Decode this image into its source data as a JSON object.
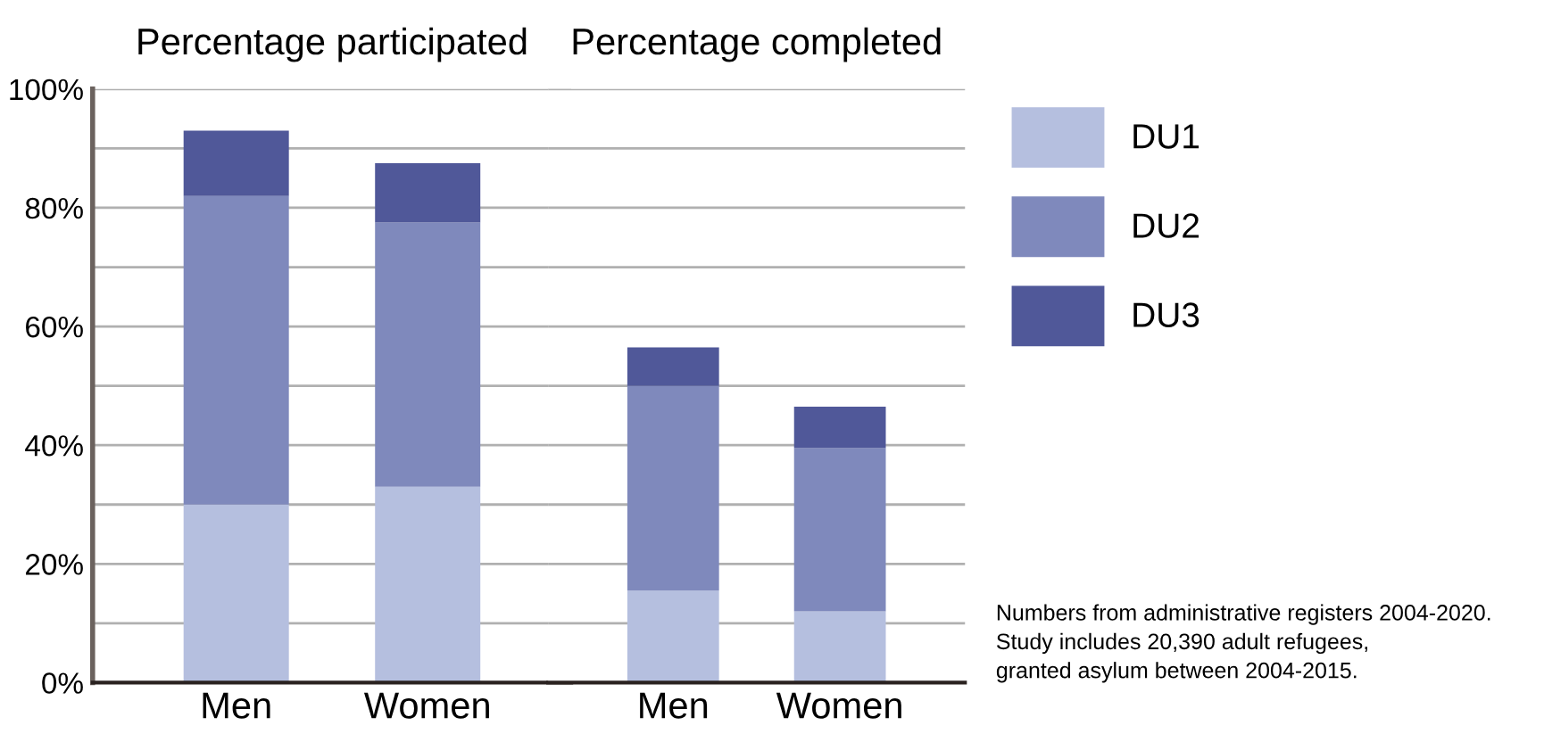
{
  "chart_data": [
    {
      "type": "bar",
      "title": "Percentage participated",
      "categories": [
        "Men",
        "Women"
      ],
      "stacked": true,
      "series": [
        {
          "color": "#b5bfdf",
          "values": [
            30,
            33
          ]
        },
        {
          "color": "#7f89bc",
          "values": [
            52,
            44.5
          ]
        },
        {
          "color": "#505899",
          "values": [
            11,
            10
          ]
        }
      ],
      "ylim": [
        0,
        100
      ],
      "yticks": [
        {
          "value": 0,
          "label": "0%"
        },
        {
          "value": 10,
          "label": null
        },
        {
          "value": 20,
          "label": "20%"
        },
        {
          "value": 30,
          "label": null
        },
        {
          "value": 40,
          "label": "40%"
        },
        {
          "value": 50,
          "label": null
        },
        {
          "value": 60,
          "label": "60%"
        },
        {
          "value": 70,
          "label": null
        },
        {
          "value": 80,
          "label": "80%"
        },
        {
          "value": 90,
          "label": null
        },
        {
          "value": 100,
          "label": "100%"
        }
      ],
      "grid": "y"
    },
    {
      "type": "bar",
      "title": "Percentage completed",
      "categories": [
        "Men",
        "Women"
      ],
      "stacked": true,
      "series": [
        {
          "name": "DU1",
          "color": "#b5bfdf",
          "values": [
            15.5,
            12
          ]
        },
        {
          "name": "DU2",
          "color": "#7f89bc",
          "values": [
            34.5,
            27.5
          ]
        },
        {
          "name": "DU3",
          "color": "#505899",
          "values": [
            6.5,
            7
          ]
        }
      ],
      "ylim": [
        0,
        100
      ],
      "yticks": [
        {
          "value": 0,
          "label": null
        },
        {
          "value": 10,
          "label": null
        },
        {
          "value": 20,
          "label": null
        },
        {
          "value": 30,
          "label": null
        },
        {
          "value": 40,
          "label": null
        },
        {
          "value": 50,
          "label": null
        },
        {
          "value": 60,
          "label": null
        },
        {
          "value": 70,
          "label": null
        },
        {
          "value": 80,
          "label": null
        },
        {
          "value": 90,
          "label": null
        },
        {
          "value": 100,
          "label": null
        }
      ],
      "grid": "y",
      "tick_labels": "x",
      "legend": "right",
      "annotations": [
        "Numbers from administrative registers 2004-2020.",
        "Study includes 20,390 adult refugees,",
        "granted asylum between 2004-2015."
      ]
    }
  ]
}
